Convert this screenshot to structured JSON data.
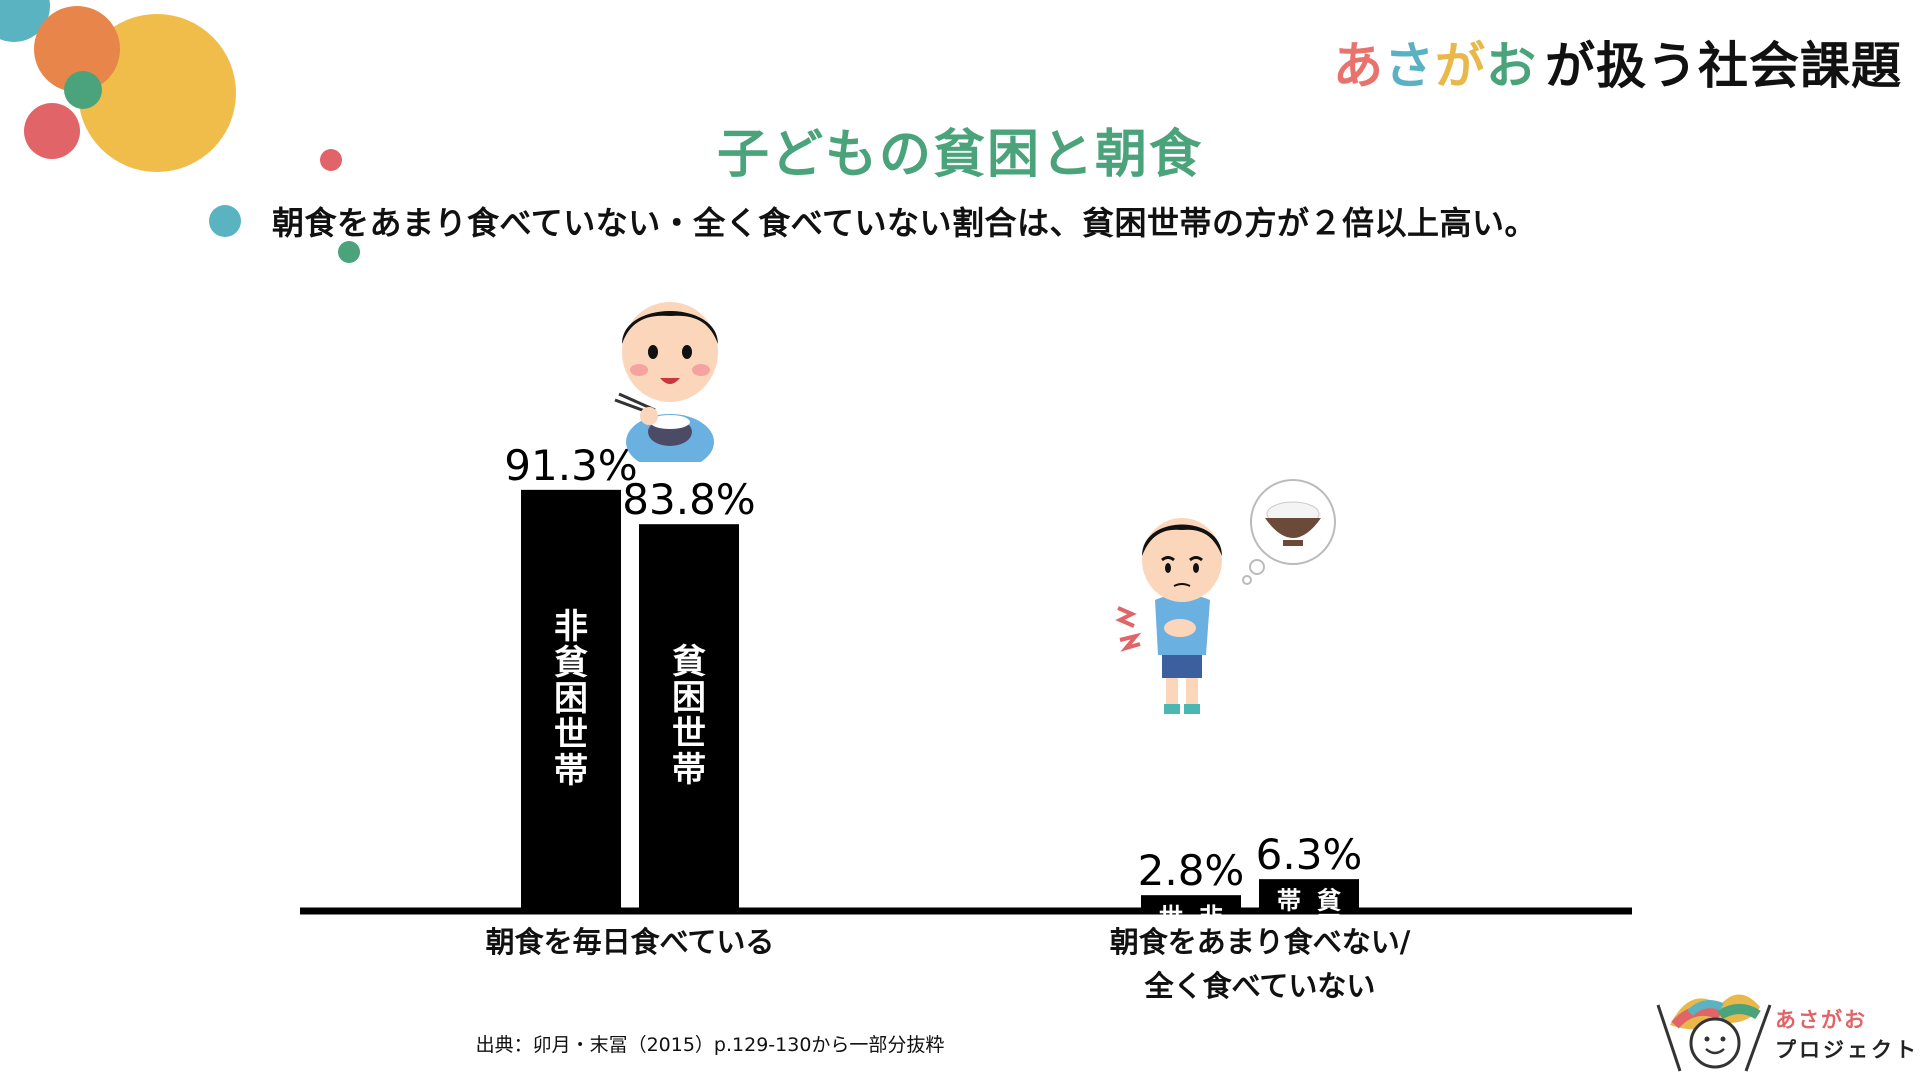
{
  "header": {
    "brand_chars": [
      "あ",
      "さ",
      "が",
      "お"
    ],
    "brand_rest": "が扱う社会課題",
    "title": "子どもの貧困と朝食",
    "statement": "朝食をあまり食べていない・全く食べていない割合は、貧困世帯の方が２倍以上高い。"
  },
  "chart_data": {
    "type": "bar",
    "categories": [
      "朝食を毎日食べている",
      "朝食をあまり食べない/全く食べていない"
    ],
    "category_lines": [
      [
        "朝食を毎日食べている"
      ],
      [
        "朝食をあまり食べない/",
        "全く食べていない"
      ]
    ],
    "series": [
      {
        "name": "非貧困世帯",
        "values": [
          91.3,
          2.8
        ],
        "labels": [
          "91.3%",
          "2.8%"
        ]
      },
      {
        "name": "貧困世帯",
        "values": [
          83.8,
          6.3
        ],
        "labels": [
          "83.8%",
          "6.3%"
        ]
      }
    ],
    "unit": "%",
    "bar_color": "#000000",
    "grid": false
  },
  "source": "出典：卯月・末冨（2015）p.129-130から一部分抜粋",
  "logo": {
    "line1": "あさがお",
    "line2": "プロジェクト"
  },
  "colors": {
    "title_green": "#4aa37a",
    "brand": [
      "#e8736e",
      "#5bb1c4",
      "#e9b84a",
      "#4aa37a"
    ],
    "dot_teal": "#5ab3c1",
    "dot_orange": "#e8854a",
    "dot_yellow": "#f0bd4a",
    "dot_green": "#4aa37a",
    "dot_red": "#e06468"
  },
  "icons": [
    "boy-eating-rice-icon",
    "hungry-boy-icon",
    "rice-bowl-thought-icon",
    "asagao-logo-icon"
  ]
}
